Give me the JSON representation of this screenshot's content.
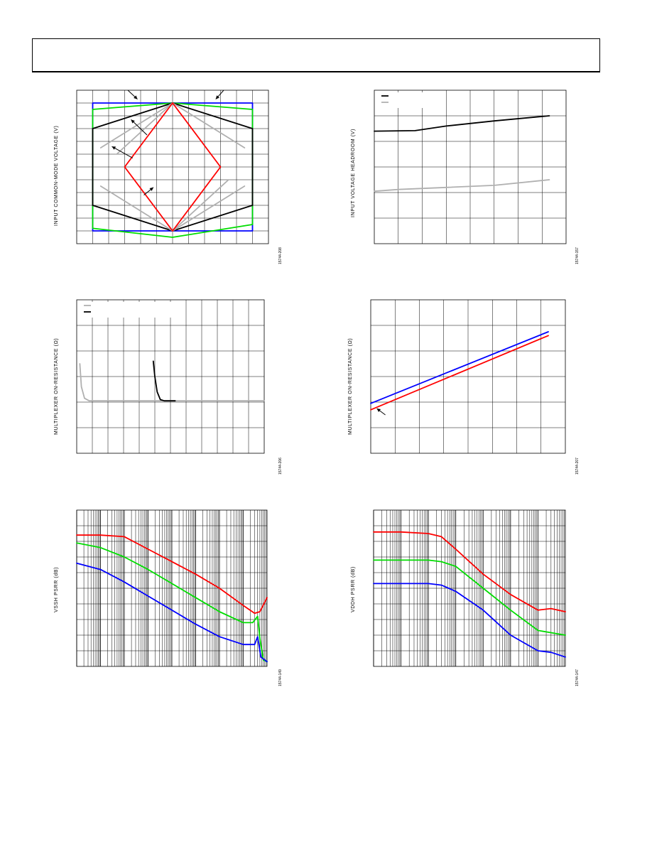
{
  "page": {
    "header_box": true
  },
  "charts": [
    {
      "id": "chart1",
      "figure_id": "15744-208",
      "ylabel": "INPUT COMMON-MODE VOLTAGE (V)",
      "type": "line",
      "grid": true,
      "xlim": [
        0,
        12
      ],
      "ylim": [
        0,
        12
      ],
      "xgrid": 12,
      "ygrid": 12,
      "series": [
        {
          "color": "#0000ff",
          "points": [
            [
              1,
              1
            ],
            [
              11,
              1
            ],
            [
              11,
              11
            ],
            [
              1,
              11
            ],
            [
              1,
              1
            ]
          ]
        },
        {
          "color": "#00dd00",
          "points": [
            [
              1,
              1.2
            ],
            [
              6,
              0.5
            ],
            [
              11,
              1.5
            ],
            [
              11,
              10.5
            ],
            [
              6,
              11
            ],
            [
              1,
              10.5
            ],
            [
              1,
              1.2
            ]
          ]
        },
        {
          "color": "#000000",
          "points": [
            [
              1,
              3
            ],
            [
              6,
              1
            ],
            [
              11,
              3
            ],
            [
              11,
              9
            ],
            [
              6,
              11
            ],
            [
              1,
              9
            ],
            [
              1,
              3
            ]
          ]
        },
        {
          "color": "#b0b0b0",
          "points": [
            [
              1.5,
              7.5
            ],
            [
              6,
              11
            ],
            [
              10.5,
              7.5
            ]
          ]
        },
        {
          "color": "#b0b0b0",
          "points": [
            [
              1.5,
              4.5
            ],
            [
              6,
              1
            ],
            [
              10.5,
              4.5
            ]
          ]
        },
        {
          "color": "#b0b0b0",
          "points": [
            [
              6,
              11
            ],
            [
              2.5,
              7
            ]
          ]
        },
        {
          "color": "#b0b0b0",
          "points": [
            [
              6,
              1
            ],
            [
              9.5,
              5
            ]
          ]
        },
        {
          "color": "#ff0000",
          "points": [
            [
              6,
              11
            ],
            [
              9,
              6
            ],
            [
              6,
              1
            ],
            [
              3,
              6
            ],
            [
              6,
              11
            ]
          ]
        }
      ],
      "arrows": [
        {
          "from": [
            3.2,
            12
          ],
          "to": [
            3.8,
            11.3
          ]
        },
        {
          "from": [
            9.2,
            12
          ],
          "to": [
            8.7,
            11.3
          ]
        },
        {
          "from": [
            4.4,
            8.5
          ],
          "to": [
            3.4,
            9.7
          ]
        },
        {
          "from": [
            3.5,
            6.7
          ],
          "to": [
            2.2,
            7.6
          ]
        },
        {
          "from": [
            4.2,
            3.8
          ],
          "to": [
            4.8,
            4.4
          ]
        }
      ]
    },
    {
      "id": "chart2",
      "figure_id": "15744-157",
      "ylabel": "INPUT VOLTAGE HEADROOM (V)",
      "type": "line",
      "grid": true,
      "xlim": [
        0,
        8
      ],
      "ylim": [
        0,
        6
      ],
      "xgrid": 8,
      "ygrid": 6,
      "legend": [
        {
          "color": "#000000"
        },
        {
          "color": "#b0b0b0"
        }
      ],
      "series": [
        {
          "color": "#000000",
          "points": [
            [
              0,
              4.4
            ],
            [
              1.7,
              4.42
            ],
            [
              3,
              4.6
            ],
            [
              5,
              4.8
            ],
            [
              7.3,
              5.0
            ]
          ]
        },
        {
          "color": "#b0b0b0",
          "points": [
            [
              0,
              2.05
            ],
            [
              1,
              2.12
            ],
            [
              3,
              2.2
            ],
            [
              5,
              2.28
            ],
            [
              7.3,
              2.5
            ]
          ]
        }
      ]
    },
    {
      "id": "chart3",
      "figure_id": "15744-206",
      "ylabel": "MULTIPLEXER ON-RESISTANCE (Ω)",
      "type": "line",
      "grid": true,
      "xlim": [
        0,
        12
      ],
      "ylim": [
        0,
        6
      ],
      "xgrid": 12,
      "ygrid": 6,
      "legend": [
        {
          "color": "#b0b0b0"
        },
        {
          "color": "#000000"
        }
      ],
      "series": [
        {
          "color": "#b0b0b0",
          "points": [
            [
              0.2,
              3.5
            ],
            [
              0.3,
              2.6
            ],
            [
              0.5,
              2.15
            ],
            [
              0.8,
              2.05
            ],
            [
              12,
              2.05
            ]
          ]
        },
        {
          "color": "#000000",
          "points": [
            [
              4.9,
              3.6
            ],
            [
              5.0,
              3.0
            ],
            [
              5.15,
              2.4
            ],
            [
              5.35,
              2.1
            ],
            [
              5.6,
              2.05
            ],
            [
              6.3,
              2.05
            ]
          ]
        }
      ]
    },
    {
      "id": "chart4",
      "figure_id": "15744-207",
      "ylabel": "MULTIPLEXER ON-RESISTANCE (Ω)",
      "type": "line",
      "grid": true,
      "xlim": [
        0,
        8
      ],
      "ylim": [
        0,
        6
      ],
      "xgrid": 8,
      "ygrid": 6,
      "series": [
        {
          "color": "#0000ff",
          "points": [
            [
              0,
              1.95
            ],
            [
              7.3,
              4.75
            ]
          ]
        },
        {
          "color": "#ff0000",
          "points": [
            [
              0,
              1.7
            ],
            [
              7.3,
              4.6
            ]
          ]
        }
      ],
      "arrows": [
        {
          "from": [
            0.6,
            1.5
          ],
          "to": [
            0.25,
            1.75
          ]
        }
      ]
    },
    {
      "id": "chart5",
      "figure_id": "15744-149",
      "ylabel": "VSSH PSRR (dB)",
      "type": "line",
      "grid": true,
      "xscale": "log",
      "xlim": [
        1,
        100000000
      ],
      "ylim": [
        0,
        10
      ],
      "ygrid": 10,
      "series": [
        {
          "color": "#ff0000",
          "points": [
            [
              1,
              8.4
            ],
            [
              10,
              8.4
            ],
            [
              100,
              8.3
            ],
            [
              1000,
              7.5
            ],
            [
              10000,
              6.7
            ],
            [
              100000,
              5.9
            ],
            [
              1000000,
              5.0
            ],
            [
              10000000,
              3.9
            ],
            [
              30000000,
              3.4
            ],
            [
              50000000,
              3.5
            ],
            [
              100000000,
              4.4
            ]
          ]
        },
        {
          "color": "#00dd00",
          "points": [
            [
              1,
              7.9
            ],
            [
              10,
              7.6
            ],
            [
              100,
              7.0
            ],
            [
              1000,
              6.2
            ],
            [
              10000,
              5.3
            ],
            [
              100000,
              4.4
            ],
            [
              1000000,
              3.5
            ],
            [
              10000000,
              2.8
            ],
            [
              25000000,
              2.8
            ],
            [
              40000000,
              3.2
            ],
            [
              50000000,
              1.8
            ],
            [
              70000000,
              0.4
            ],
            [
              100000000,
              0.3
            ]
          ]
        },
        {
          "color": "#0000ff",
          "points": [
            [
              1,
              6.6
            ],
            [
              10,
              6.2
            ],
            [
              100,
              5.4
            ],
            [
              1000,
              4.5
            ],
            [
              10000,
              3.6
            ],
            [
              100000,
              2.7
            ],
            [
              1000000,
              1.9
            ],
            [
              10000000,
              1.4
            ],
            [
              30000000,
              1.4
            ],
            [
              40000000,
              1.9
            ],
            [
              55000000,
              0.6
            ],
            [
              100000000,
              0.3
            ]
          ]
        }
      ]
    },
    {
      "id": "chart6",
      "figure_id": "15744-147",
      "ylabel": "VDDH PSRR (dB)",
      "type": "line",
      "grid": true,
      "xscale": "log",
      "xlim": [
        1,
        10000000
      ],
      "ylim": [
        0,
        10
      ],
      "ygrid": 10,
      "series": [
        {
          "color": "#ff0000",
          "points": [
            [
              1,
              8.6
            ],
            [
              10,
              8.6
            ],
            [
              100,
              8.5
            ],
            [
              300,
              8.3
            ],
            [
              1000,
              7.5
            ],
            [
              10000,
              5.9
            ],
            [
              100000,
              4.6
            ],
            [
              1000000,
              3.6
            ],
            [
              3000000,
              3.7
            ],
            [
              10000000,
              3.5
            ]
          ]
        },
        {
          "color": "#00dd00",
          "points": [
            [
              1,
              6.8
            ],
            [
              100,
              6.8
            ],
            [
              300,
              6.7
            ],
            [
              1000,
              6.4
            ],
            [
              10000,
              5.0
            ],
            [
              100000,
              3.6
            ],
            [
              1000000,
              2.3
            ],
            [
              10000000,
              2.0
            ]
          ]
        },
        {
          "color": "#0000ff",
          "points": [
            [
              1,
              5.3
            ],
            [
              100,
              5.3
            ],
            [
              300,
              5.2
            ],
            [
              1000,
              4.8
            ],
            [
              10000,
              3.6
            ],
            [
              100000,
              2.0
            ],
            [
              1000000,
              1.0
            ],
            [
              3000000,
              0.9
            ],
            [
              10000000,
              0.6
            ]
          ]
        }
      ]
    }
  ]
}
